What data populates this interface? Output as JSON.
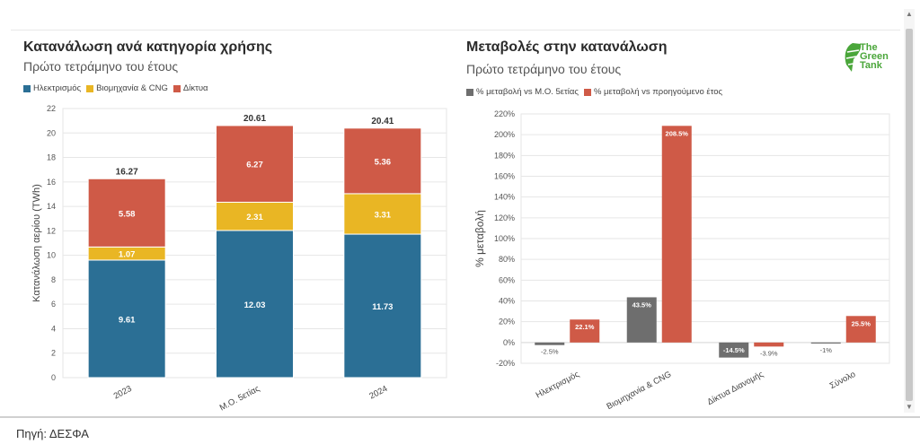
{
  "left": {
    "title": "Κατανάλωση ανά κατηγορία χρήσης",
    "subtitle": "Πρώτο τετράμηνο του έτους",
    "legend": [
      {
        "label": "Ηλεκτρισμός",
        "color": "#2b6f95"
      },
      {
        "label": "Βιομηχανία & CNG",
        "color": "#e9b624"
      },
      {
        "label": "Δίκτυα",
        "color": "#cf5a47"
      }
    ]
  },
  "right": {
    "title": "Μεταβολές στην κατανάλωση",
    "subtitle": "Πρώτο τετράμηνο του έτους",
    "legend": [
      {
        "label": "% μεταβολή vs Μ.Ο. 5ετίας",
        "color": "#6e6e6e"
      },
      {
        "label": "% μεταβολή vs προηγούμενο έτος",
        "color": "#cf5a47"
      }
    ]
  },
  "logo": {
    "line1": "The",
    "line2": "Green",
    "line3": "Tank",
    "color": "#4aa63a"
  },
  "source": "Πηγή: ΔΕΣΦΑ",
  "chart_data": [
    {
      "type": "bar",
      "stacked": true,
      "title": "Κατανάλωση ανά κατηγορία χρήσης",
      "subtitle": "Πρώτο τετράμηνο του έτους",
      "ylabel": "Κατανάλωση αερίου (TWh)",
      "ylim": [
        0,
        22
      ],
      "yticks": [
        0,
        2,
        4,
        6,
        8,
        10,
        12,
        14,
        16,
        18,
        20,
        22
      ],
      "categories": [
        "2023",
        "Μ.Ο. 5ετίας",
        "2024"
      ],
      "series": [
        {
          "name": "Ηλεκτρισμός",
          "color": "#2b6f95",
          "values": [
            9.61,
            12.03,
            11.73
          ],
          "labels": [
            "9.61",
            "12.03",
            "11.73"
          ]
        },
        {
          "name": "Βιομηχανία & CNG",
          "color": "#e9b624",
          "values": [
            1.07,
            2.31,
            3.31
          ],
          "labels": [
            "1.07",
            "2.31",
            "3.31"
          ]
        },
        {
          "name": "Δίκτυα",
          "color": "#cf5a47",
          "values": [
            5.58,
            6.27,
            5.36
          ],
          "labels": [
            "5.58",
            "6.27",
            "5.36"
          ]
        }
      ],
      "totals": [
        "16.27",
        "20.61",
        "20.41"
      ],
      "grid": true,
      "legend_position": "top-left"
    },
    {
      "type": "bar",
      "title": "Μεταβολές στην κατανάλωση",
      "subtitle": "Πρώτο τετράμηνο του έτους",
      "ylabel": "% μεταβολή",
      "ylim": [
        -20,
        220
      ],
      "yticks": [
        -20,
        0,
        20,
        40,
        60,
        80,
        100,
        120,
        140,
        160,
        180,
        200,
        220
      ],
      "ytick_labels": [
        "-20%",
        "0%",
        "20%",
        "40%",
        "60%",
        "80%",
        "100%",
        "120%",
        "140%",
        "160%",
        "180%",
        "200%",
        "220%"
      ],
      "categories": [
        "Ηλεκτρισμός",
        "Βιομηχανία & CNG",
        "Δίκτυα Διανομής",
        "Σύνολο"
      ],
      "series": [
        {
          "name": "% μεταβολή vs Μ.Ο. 5ετίας",
          "color": "#6e6e6e",
          "values": [
            -2.5,
            43.5,
            -14.5,
            -1
          ],
          "labels": [
            "-2.5%",
            "43.5%",
            "-14.5%",
            "-1%"
          ]
        },
        {
          "name": "% μεταβολή vs προηγούμενο έτος",
          "color": "#cf5a47",
          "values": [
            22.1,
            208.5,
            -3.9,
            25.5
          ],
          "labels": [
            "22.1%",
            "208.5%",
            "-3.9%",
            "25.5%"
          ]
        }
      ],
      "grid": true,
      "legend_position": "top-left"
    }
  ]
}
